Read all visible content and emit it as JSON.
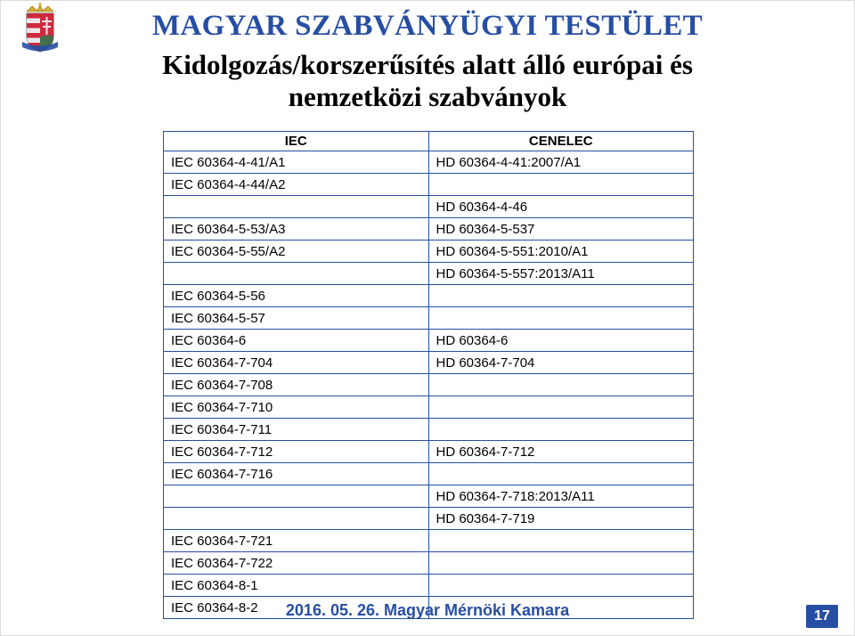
{
  "page": {
    "title": "MAGYAR SZABVÁNYÜGYI TESTÜLET",
    "subtitle_line1": "Kidolgozás/korszerűsítés alatt álló európai és",
    "subtitle_line2": "nemzetközi szabványok",
    "footer_text": "2016. 05. 26. Magyar Mérnöki Kamara",
    "page_number": "17"
  },
  "table": {
    "header_left": "IEC",
    "header_right": "CENELEC",
    "rows": [
      {
        "iec": "IEC 60364-4-41/A1",
        "cenelec": "HD 60364-4-41:2007/A1"
      },
      {
        "iec": "IEC 60364-4-44/A2",
        "cenelec": ""
      },
      {
        "iec": "",
        "cenelec": "HD 60364-4-46"
      },
      {
        "iec": "IEC 60364-5-53/A3",
        "cenelec": "HD 60364-5-537"
      },
      {
        "iec": "IEC 60364-5-55/A2",
        "cenelec": "HD 60364-5-551:2010/A1"
      },
      {
        "iec": "",
        "cenelec": "HD 60364-5-557:2013/A11"
      },
      {
        "iec": "IEC 60364-5-56",
        "cenelec": ""
      },
      {
        "iec": "IEC 60364-5-57",
        "cenelec": ""
      },
      {
        "iec": "IEC 60364-6",
        "cenelec": "HD 60364-6"
      },
      {
        "iec": "IEC 60364-7-704",
        "cenelec": "HD 60364-7-704"
      },
      {
        "iec": "IEC 60364-7-708",
        "cenelec": ""
      },
      {
        "iec": "IEC 60364-7-710",
        "cenelec": ""
      },
      {
        "iec": "IEC 60364-7-711",
        "cenelec": ""
      },
      {
        "iec": "IEC 60364-7-712",
        "cenelec": "HD 60364-7-712"
      },
      {
        "iec": "IEC 60364-7-716",
        "cenelec": ""
      },
      {
        "iec": "",
        "cenelec": "HD 60364-7-718:2013/A11"
      },
      {
        "iec": "",
        "cenelec": "HD 60364-7-719"
      },
      {
        "iec": "IEC 60364-7-721",
        "cenelec": ""
      },
      {
        "iec": "IEC 60364-7-722",
        "cenelec": ""
      },
      {
        "iec": "IEC 60364-8-1",
        "cenelec": ""
      },
      {
        "iec": "IEC 60364-8-2",
        "cenelec": ""
      }
    ]
  },
  "colors": {
    "brand_blue": "#274ea3",
    "hungary_red": "#cd2a3e",
    "hungary_green": "#436f4d",
    "white": "#ffffff"
  }
}
